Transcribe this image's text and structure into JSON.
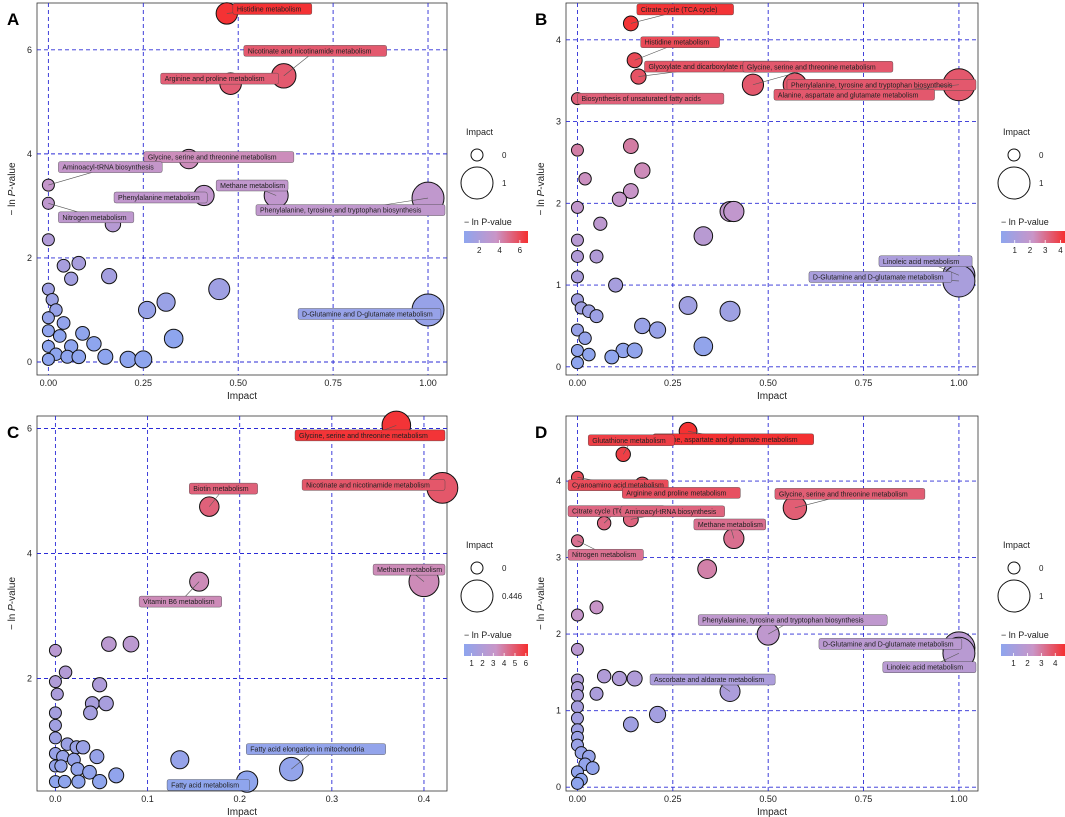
{
  "colors": {
    "low": "#8ea5ee",
    "mid": "#c995c7",
    "high": "#f52f2f",
    "grid": "#2b2bd6"
  },
  "axis_labels": {
    "x": "Impact",
    "y_prefix": "− ln ",
    "y_italic": "P",
    "y_suffix": "-value"
  },
  "legend_titles": {
    "size": "Impact",
    "color": "− ln P-value"
  },
  "chart_data": [
    {
      "panel": "A",
      "type": "scatter",
      "xlim": [
        -0.03,
        1.05
      ],
      "ylim": [
        -0.25,
        6.9
      ],
      "xticks": [
        0,
        0.25,
        0.5,
        0.75,
        1.0
      ],
      "xtick_labels": [
        "0.00",
        "0.25",
        "0.50",
        "0.75",
        "1.00"
      ],
      "yticks": [
        0,
        2,
        4,
        6
      ],
      "ytick_labels": [
        "0",
        "2",
        "4",
        "6"
      ],
      "size_legend": {
        "values": [
          0,
          1
        ],
        "labels": [
          "0",
          "1"
        ]
      },
      "color_legend": {
        "min": 0.5,
        "max": 6.8,
        "ticks": [
          2,
          4,
          6
        ],
        "labels": [
          "2",
          "4",
          "6"
        ]
      },
      "points": [
        {
          "x": 0.47,
          "y": 6.7,
          "label": "Histidine metabolism"
        },
        {
          "x": 0.62,
          "y": 5.5,
          "label": "Nicotinate and nicotinamide metabolism"
        },
        {
          "x": 0.48,
          "y": 5.35,
          "label": "Arginine and proline metabolism"
        },
        {
          "x": 0.37,
          "y": 3.9,
          "label": "Glycine, serine and threonine metabolism"
        },
        {
          "x": 0.41,
          "y": 3.2,
          "label": "Phenylalanine metabolism"
        },
        {
          "x": 0.6,
          "y": 3.2,
          "label": "Methane metabolism"
        },
        {
          "x": 1.0,
          "y": 3.15,
          "label": "Phenylalanine, tyrosine and tryptophan biosynthesis"
        },
        {
          "x": 0.0,
          "y": 3.4,
          "label": "Aminoacyl-tRNA biosynthesis"
        },
        {
          "x": 0.0,
          "y": 3.05,
          "label": "Nitrogen metabolism"
        },
        {
          "x": 1.0,
          "y": 1.0,
          "label": "D-Glutamine and D-glutamate metabolism"
        },
        {
          "x": 0.17,
          "y": 2.65
        },
        {
          "x": 0.0,
          "y": 2.35
        },
        {
          "x": 0.04,
          "y": 1.85
        },
        {
          "x": 0.08,
          "y": 1.9
        },
        {
          "x": 0.06,
          "y": 1.6
        },
        {
          "x": 0.16,
          "y": 1.65
        },
        {
          "x": 0.45,
          "y": 1.4
        },
        {
          "x": 0.31,
          "y": 1.15
        },
        {
          "x": 0.26,
          "y": 1.0
        },
        {
          "x": 0.33,
          "y": 0.45
        },
        {
          "x": 0.0,
          "y": 1.4
        },
        {
          "x": 0.01,
          "y": 1.2
        },
        {
          "x": 0.02,
          "y": 1.0
        },
        {
          "x": 0.0,
          "y": 0.85
        },
        {
          "x": 0.04,
          "y": 0.75
        },
        {
          "x": 0.0,
          "y": 0.6
        },
        {
          "x": 0.03,
          "y": 0.5
        },
        {
          "x": 0.09,
          "y": 0.55
        },
        {
          "x": 0.12,
          "y": 0.35
        },
        {
          "x": 0.06,
          "y": 0.3
        },
        {
          "x": 0.0,
          "y": 0.3
        },
        {
          "x": 0.02,
          "y": 0.15
        },
        {
          "x": 0.05,
          "y": 0.1
        },
        {
          "x": 0.08,
          "y": 0.1
        },
        {
          "x": 0.0,
          "y": 0.05
        },
        {
          "x": 0.15,
          "y": 0.1
        },
        {
          "x": 0.21,
          "y": 0.05
        },
        {
          "x": 0.25,
          "y": 0.05
        }
      ]
    },
    {
      "panel": "B",
      "type": "scatter",
      "xlim": [
        -0.03,
        1.05
      ],
      "ylim": [
        -0.1,
        4.45
      ],
      "xticks": [
        0,
        0.25,
        0.5,
        0.75,
        1.0
      ],
      "xtick_labels": [
        "0.00",
        "0.25",
        "0.50",
        "0.75",
        "1.00"
      ],
      "yticks": [
        0,
        1,
        2,
        3,
        4
      ],
      "ytick_labels": [
        "0",
        "1",
        "2",
        "3",
        "4"
      ],
      "size_legend": {
        "values": [
          0,
          1
        ],
        "labels": [
          "0",
          "1"
        ]
      },
      "color_legend": {
        "min": 0.1,
        "max": 4.3,
        "ticks": [
          1,
          2,
          3,
          4
        ],
        "labels": [
          "1",
          "2",
          "3",
          "4"
        ]
      },
      "points": [
        {
          "x": 0.14,
          "y": 4.2,
          "label": "Citrate cycle (TCA cycle)"
        },
        {
          "x": 0.15,
          "y": 3.75,
          "label": "Histidine metabolism"
        },
        {
          "x": 0.16,
          "y": 3.55,
          "label": "Glyoxylate and dicarboxylate metabolism"
        },
        {
          "x": 0.46,
          "y": 3.45,
          "label": "Glycine, serine and threonine metabolism"
        },
        {
          "x": 0.57,
          "y": 3.45,
          "label": "Phenylalanine, tyrosine and tryptophan biosynthesis"
        },
        {
          "x": 1.0,
          "y": 3.45,
          "label": "Alanine, aspartate and glutamate metabolism"
        },
        {
          "x": 0.0,
          "y": 3.28,
          "label": "Biosynthesis of unsaturated fatty acids"
        },
        {
          "x": 1.0,
          "y": 1.12,
          "label": "Linoleic acid metabolism"
        },
        {
          "x": 1.0,
          "y": 1.05,
          "label": "D-Glutamine and D-glutamate metabolism"
        },
        {
          "x": 0.14,
          "y": 2.7
        },
        {
          "x": 0.0,
          "y": 2.65
        },
        {
          "x": 0.17,
          "y": 2.4
        },
        {
          "x": 0.02,
          "y": 2.3
        },
        {
          "x": 0.14,
          "y": 2.15
        },
        {
          "x": 0.11,
          "y": 2.05
        },
        {
          "x": 0.0,
          "y": 1.95
        },
        {
          "x": 0.4,
          "y": 1.9
        },
        {
          "x": 0.41,
          "y": 1.9
        },
        {
          "x": 0.06,
          "y": 1.75
        },
        {
          "x": 0.33,
          "y": 1.6
        },
        {
          "x": 0.0,
          "y": 1.55
        },
        {
          "x": 0.0,
          "y": 1.35
        },
        {
          "x": 0.05,
          "y": 1.35
        },
        {
          "x": 0.0,
          "y": 1.1
        },
        {
          "x": 0.1,
          "y": 1.0
        },
        {
          "x": 0.0,
          "y": 0.82
        },
        {
          "x": 0.01,
          "y": 0.72
        },
        {
          "x": 0.03,
          "y": 0.68
        },
        {
          "x": 0.05,
          "y": 0.62
        },
        {
          "x": 0.29,
          "y": 0.75
        },
        {
          "x": 0.4,
          "y": 0.68
        },
        {
          "x": 0.0,
          "y": 0.45
        },
        {
          "x": 0.02,
          "y": 0.35
        },
        {
          "x": 0.17,
          "y": 0.5
        },
        {
          "x": 0.21,
          "y": 0.45
        },
        {
          "x": 0.0,
          "y": 0.2
        },
        {
          "x": 0.03,
          "y": 0.15
        },
        {
          "x": 0.12,
          "y": 0.2
        },
        {
          "x": 0.15,
          "y": 0.2
        },
        {
          "x": 0.09,
          "y": 0.12
        },
        {
          "x": 0.33,
          "y": 0.25
        },
        {
          "x": 0.0,
          "y": 0.05
        }
      ]
    },
    {
      "panel": "C",
      "type": "scatter",
      "xlim": [
        -0.02,
        0.425
      ],
      "ylim": [
        0.2,
        6.2
      ],
      "xticks": [
        0,
        0.1,
        0.2,
        0.3,
        0.4
      ],
      "xtick_labels": [
        "0.0",
        "0.1",
        "0.2",
        "0.3",
        "0.4"
      ],
      "yticks": [
        2,
        4,
        6
      ],
      "ytick_labels": [
        "2",
        "4",
        "6"
      ],
      "size_legend": {
        "values": [
          0,
          0.446
        ],
        "labels": [
          "0",
          "0.446"
        ]
      },
      "color_legend": {
        "min": 0.3,
        "max": 6.2,
        "ticks": [
          1,
          2,
          3,
          4,
          5,
          6
        ],
        "labels": [
          "1",
          "2",
          "3",
          "4",
          "5",
          "6"
        ]
      },
      "points": [
        {
          "x": 0.37,
          "y": 6.05,
          "label": "Glycine, serine and threonine metabolism"
        },
        {
          "x": 0.42,
          "y": 5.05,
          "label": "Nicotinate and nicotinamide metabolism"
        },
        {
          "x": 0.167,
          "y": 4.75,
          "label": "Biotin metabolism"
        },
        {
          "x": 0.4,
          "y": 3.55,
          "label": "Methane metabolism"
        },
        {
          "x": 0.156,
          "y": 3.55,
          "label": "Vitamin B6 metabolism"
        },
        {
          "x": 0.256,
          "y": 0.55,
          "label": "Fatty acid elongation in mitochondria"
        },
        {
          "x": 0.208,
          "y": 0.35,
          "label": "Fatty acid metabolism"
        },
        {
          "x": 0.058,
          "y": 2.55
        },
        {
          "x": 0.082,
          "y": 2.55
        },
        {
          "x": 0.0,
          "y": 2.45
        },
        {
          "x": 0.011,
          "y": 2.1
        },
        {
          "x": 0.0,
          "y": 1.95
        },
        {
          "x": 0.048,
          "y": 1.9
        },
        {
          "x": 0.002,
          "y": 1.75
        },
        {
          "x": 0.04,
          "y": 1.6
        },
        {
          "x": 0.055,
          "y": 1.6
        },
        {
          "x": 0.038,
          "y": 1.45
        },
        {
          "x": 0.0,
          "y": 1.45
        },
        {
          "x": 0.0,
          "y": 1.25
        },
        {
          "x": 0.0,
          "y": 1.05
        },
        {
          "x": 0.013,
          "y": 0.95
        },
        {
          "x": 0.023,
          "y": 0.9
        },
        {
          "x": 0.03,
          "y": 0.9
        },
        {
          "x": 0.0,
          "y": 0.8
        },
        {
          "x": 0.008,
          "y": 0.75
        },
        {
          "x": 0.045,
          "y": 0.75
        },
        {
          "x": 0.02,
          "y": 0.7
        },
        {
          "x": 0.135,
          "y": 0.7
        },
        {
          "x": 0.0,
          "y": 0.6
        },
        {
          "x": 0.006,
          "y": 0.6
        },
        {
          "x": 0.024,
          "y": 0.55
        },
        {
          "x": 0.037,
          "y": 0.5
        },
        {
          "x": 0.066,
          "y": 0.45
        },
        {
          "x": 0.0,
          "y": 0.35
        },
        {
          "x": 0.01,
          "y": 0.35
        },
        {
          "x": 0.025,
          "y": 0.35
        },
        {
          "x": 0.048,
          "y": 0.35
        }
      ]
    },
    {
      "panel": "D",
      "type": "scatter",
      "xlim": [
        -0.03,
        1.05
      ],
      "ylim": [
        -0.05,
        4.85
      ],
      "xticks": [
        0,
        0.25,
        0.5,
        0.75,
        1.0
      ],
      "xtick_labels": [
        "0.00",
        "0.25",
        "0.50",
        "0.75",
        "1.00"
      ],
      "yticks": [
        0,
        1,
        2,
        3,
        4
      ],
      "ytick_labels": [
        "0",
        "1",
        "2",
        "3",
        "4"
      ],
      "size_legend": {
        "values": [
          0,
          1
        ],
        "labels": [
          "0",
          "1"
        ]
      },
      "color_legend": {
        "min": 0.1,
        "max": 4.7,
        "ticks": [
          1,
          2,
          3,
          4
        ],
        "labels": [
          "1",
          "2",
          "3",
          "4"
        ]
      },
      "points": [
        {
          "x": 0.29,
          "y": 4.65,
          "label": "Alanine, aspartate and glutamate metabolism"
        },
        {
          "x": 0.12,
          "y": 4.35,
          "label": "Glutathione metabolism"
        },
        {
          "x": 0.0,
          "y": 4.05,
          "label": "Cyanoamino acid metabolism"
        },
        {
          "x": 0.17,
          "y": 3.95,
          "label": "Arginine and proline metabolism"
        },
        {
          "x": 0.57,
          "y": 3.65,
          "label": "Glycine, serine and threonine metabolism"
        },
        {
          "x": 0.07,
          "y": 3.45,
          "label": "Citrate cycle (TCA cycle)"
        },
        {
          "x": 0.14,
          "y": 3.5,
          "label": "Aminoacyl-tRNA biosynthesis"
        },
        {
          "x": 0.41,
          "y": 3.25,
          "label": "Methane metabolism"
        },
        {
          "x": 0.0,
          "y": 3.22,
          "label": "Nitrogen metabolism"
        },
        {
          "x": 0.5,
          "y": 2.0,
          "label": "Phenylalanine, tyrosine and tryptophan biosynthesis"
        },
        {
          "x": 1.0,
          "y": 1.82,
          "label": "D-Glutamine and D-glutamate metabolism"
        },
        {
          "x": 1.0,
          "y": 1.75,
          "label": "Linoleic acid metabolism"
        },
        {
          "x": 0.4,
          "y": 1.25,
          "label": "Ascorbate and aldarate metabolism"
        },
        {
          "x": 0.34,
          "y": 2.85
        },
        {
          "x": 0.05,
          "y": 2.35
        },
        {
          "x": 0.0,
          "y": 2.25
        },
        {
          "x": 0.0,
          "y": 1.8
        },
        {
          "x": 0.07,
          "y": 1.45
        },
        {
          "x": 0.11,
          "y": 1.42
        },
        {
          "x": 0.15,
          "y": 1.42
        },
        {
          "x": 0.0,
          "y": 1.4
        },
        {
          "x": 0.0,
          "y": 1.3
        },
        {
          "x": 0.0,
          "y": 1.2
        },
        {
          "x": 0.05,
          "y": 1.22
        },
        {
          "x": 0.0,
          "y": 1.05
        },
        {
          "x": 0.14,
          "y": 0.82
        },
        {
          "x": 0.21,
          "y": 0.95
        },
        {
          "x": 0.0,
          "y": 0.9
        },
        {
          "x": 0.0,
          "y": 0.75
        },
        {
          "x": 0.0,
          "y": 0.65
        },
        {
          "x": 0.0,
          "y": 0.55
        },
        {
          "x": 0.01,
          "y": 0.45
        },
        {
          "x": 0.03,
          "y": 0.4
        },
        {
          "x": 0.02,
          "y": 0.3
        },
        {
          "x": 0.04,
          "y": 0.25
        },
        {
          "x": 0.0,
          "y": 0.2
        },
        {
          "x": 0.01,
          "y": 0.1
        },
        {
          "x": 0.0,
          "y": 0.05
        }
      ]
    }
  ]
}
